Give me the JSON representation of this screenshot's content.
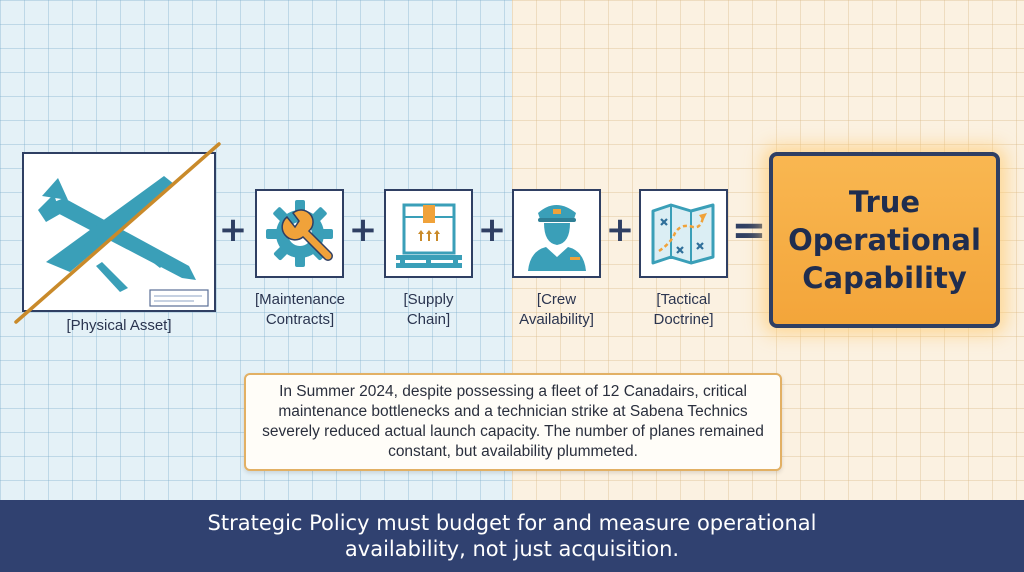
{
  "diagram": {
    "components": [
      {
        "label": "[Physical Asset]",
        "icon": "crossed-out-airplane-icon"
      },
      {
        "label": "[Maintenance Contracts]",
        "icon": "gear-wrench-icon"
      },
      {
        "label": "[Supply Chain]",
        "icon": "cargo-box-icon"
      },
      {
        "label": "[Crew Availability]",
        "icon": "pilot-icon"
      },
      {
        "label": "[Tactical Doctrine]",
        "icon": "map-icon"
      }
    ],
    "operator_plus": "+",
    "operator_equals": "=",
    "result": "True Operational Capability",
    "note": "In Summer 2024, despite possessing a fleet of 12 Canadairs, critical maintenance bottlenecks and a technician strike at Sabena Technics severely reduced actual launch capacity. The number of planes remained constant, but availability plummeted.",
    "banner": "Strategic Policy must budget for and measure operational availability, not just acquisition."
  },
  "colors": {
    "icon_teal": "#3a9fb8",
    "frame_navy": "#2f3f63",
    "strike_orange": "#c98a2a",
    "result_orange": "#f6ad45",
    "banner_navy": "#304170"
  }
}
